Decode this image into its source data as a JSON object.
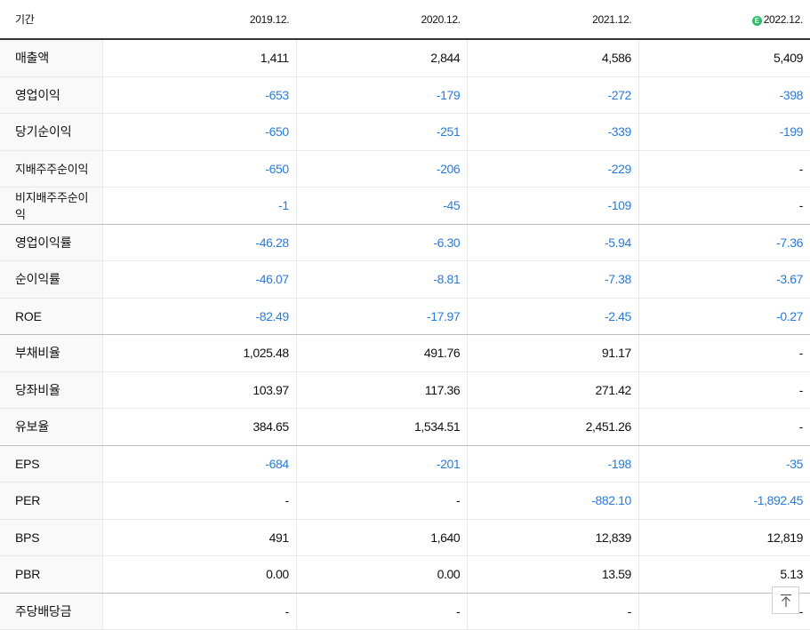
{
  "header": {
    "period_label": "기간",
    "columns": [
      {
        "label": "2019.12.",
        "estimate": false
      },
      {
        "label": "2020.12.",
        "estimate": false
      },
      {
        "label": "2021.12.",
        "estimate": false
      },
      {
        "label": "2022.12.",
        "estimate": true,
        "badge": "E"
      }
    ]
  },
  "rows": [
    {
      "label": "매출액",
      "small": false,
      "values": [
        "1,411",
        "2,844",
        "4,586",
        "5,409"
      ],
      "neg": [
        false,
        false,
        false,
        false
      ],
      "group_end": false
    },
    {
      "label": "영업이익",
      "small": false,
      "values": [
        "-653",
        "-179",
        "-272",
        "-398"
      ],
      "neg": [
        true,
        true,
        true,
        true
      ],
      "group_end": false
    },
    {
      "label": "당기순이익",
      "small": false,
      "values": [
        "-650",
        "-251",
        "-339",
        "-199"
      ],
      "neg": [
        true,
        true,
        true,
        true
      ],
      "group_end": false
    },
    {
      "label": "지배주주순이익",
      "small": true,
      "values": [
        "-650",
        "-206",
        "-229",
        "-"
      ],
      "neg": [
        true,
        true,
        true,
        false
      ],
      "group_end": false
    },
    {
      "label": "비지배주주순이익",
      "small": true,
      "values": [
        "-1",
        "-45",
        "-109",
        "-"
      ],
      "neg": [
        true,
        true,
        true,
        false
      ],
      "group_end": true
    },
    {
      "label": "영업이익률",
      "small": false,
      "values": [
        "-46.28",
        "-6.30",
        "-5.94",
        "-7.36"
      ],
      "neg": [
        true,
        true,
        true,
        true
      ],
      "group_end": false
    },
    {
      "label": "순이익률",
      "small": false,
      "values": [
        "-46.07",
        "-8.81",
        "-7.38",
        "-3.67"
      ],
      "neg": [
        true,
        true,
        true,
        true
      ],
      "group_end": false
    },
    {
      "label": "ROE",
      "small": false,
      "values": [
        "-82.49",
        "-17.97",
        "-2.45",
        "-0.27"
      ],
      "neg": [
        true,
        true,
        true,
        true
      ],
      "group_end": true
    },
    {
      "label": "부채비율",
      "small": false,
      "values": [
        "1,025.48",
        "491.76",
        "91.17",
        "-"
      ],
      "neg": [
        false,
        false,
        false,
        false
      ],
      "group_end": false
    },
    {
      "label": "당좌비율",
      "small": false,
      "values": [
        "103.97",
        "117.36",
        "271.42",
        "-"
      ],
      "neg": [
        false,
        false,
        false,
        false
      ],
      "group_end": false
    },
    {
      "label": "유보율",
      "small": false,
      "values": [
        "384.65",
        "1,534.51",
        "2,451.26",
        "-"
      ],
      "neg": [
        false,
        false,
        false,
        false
      ],
      "group_end": true
    },
    {
      "label": "EPS",
      "small": false,
      "values": [
        "-684",
        "-201",
        "-198",
        "-35"
      ],
      "neg": [
        true,
        true,
        true,
        true
      ],
      "group_end": false
    },
    {
      "label": "PER",
      "small": false,
      "values": [
        "-",
        "-",
        "-882.10",
        "-1,892.45"
      ],
      "neg": [
        false,
        false,
        true,
        true
      ],
      "group_end": false
    },
    {
      "label": "BPS",
      "small": false,
      "values": [
        "491",
        "1,640",
        "12,839",
        "12,819"
      ],
      "neg": [
        false,
        false,
        false,
        false
      ],
      "group_end": false
    },
    {
      "label": "PBR",
      "small": false,
      "values": [
        "0.00",
        "0.00",
        "13.59",
        "5.13"
      ],
      "neg": [
        false,
        false,
        false,
        false
      ],
      "group_end": true
    },
    {
      "label": "주당배당금",
      "small": false,
      "values": [
        "-",
        "-",
        "-",
        "-"
      ],
      "neg": [
        false,
        false,
        false,
        false
      ],
      "group_end": false
    }
  ],
  "colors": {
    "negative": "#2a7bd8",
    "positive": "#111111",
    "estimate_badge": "#2ebd6b"
  },
  "top_button": {
    "icon": "arrow-up-to-top-icon"
  }
}
